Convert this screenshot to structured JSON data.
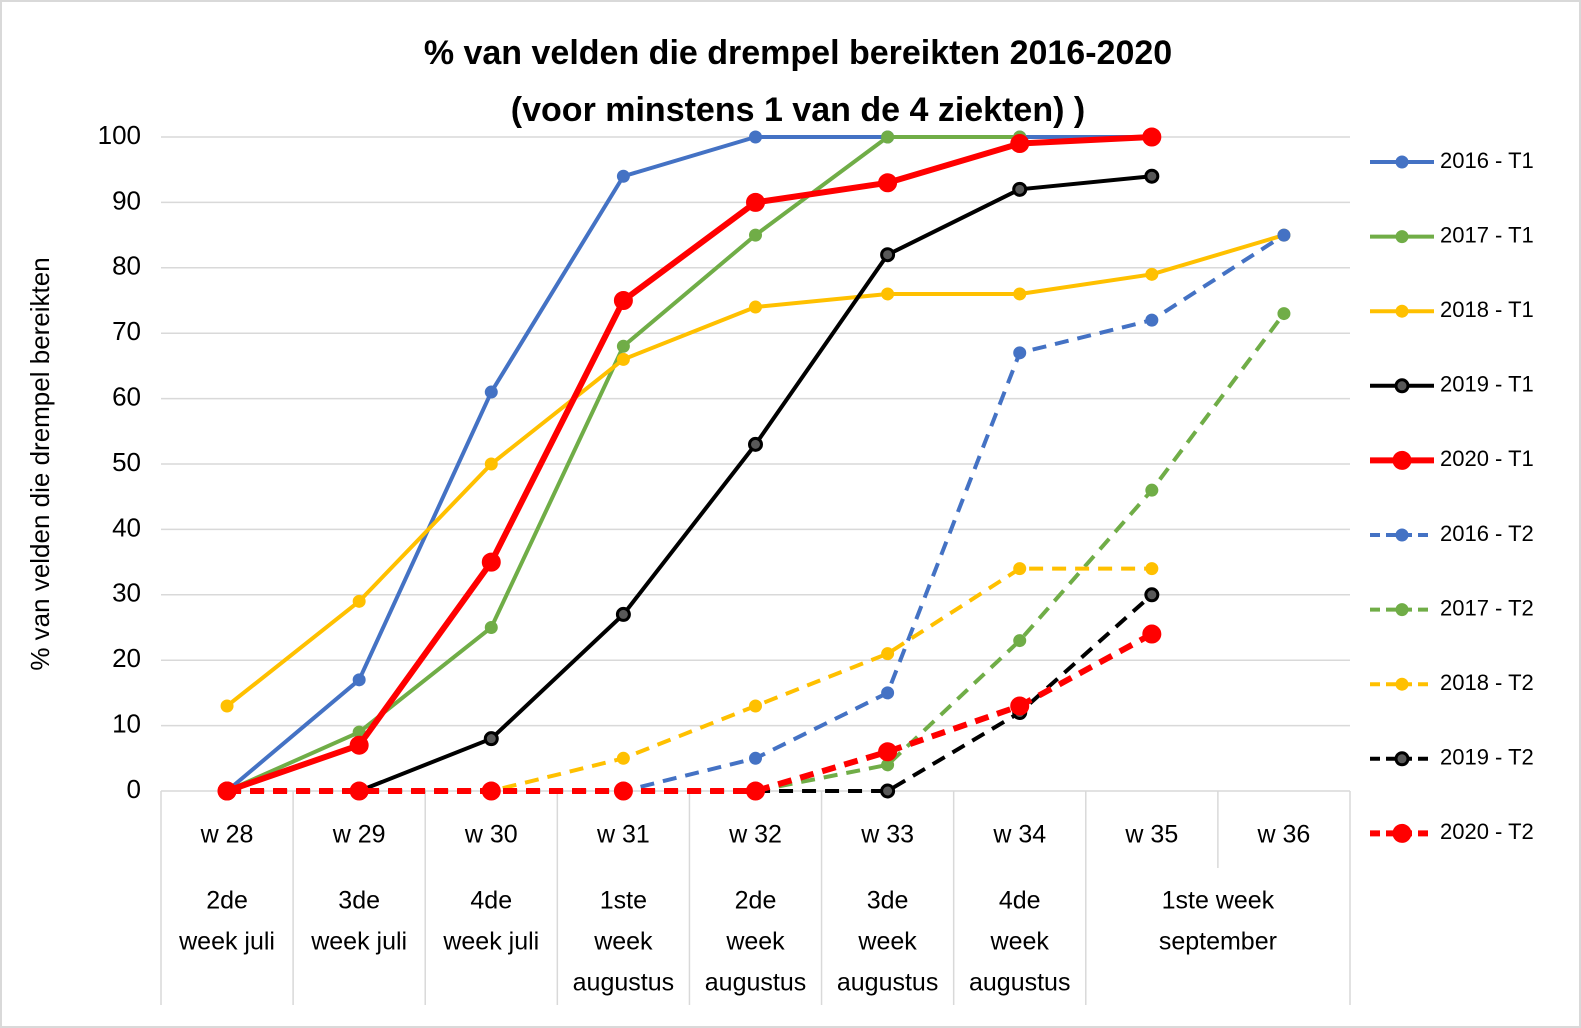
{
  "chart_data": {
    "type": "line",
    "title": [
      "% van velden die drempel bereikten 2016-2020",
      "(voor minstens 1 van de 4 ziekten) )"
    ],
    "y_label": "% van velden die drempel bereikten",
    "categories": [
      "w 28",
      "w 29",
      "w 30",
      "w 31",
      "w 32",
      "w 33",
      "w 34",
      "w 35",
      "w 36"
    ],
    "categories2": [
      [
        "2de",
        "week juli"
      ],
      [
        "3de",
        "week juli"
      ],
      [
        "4de",
        "week juli"
      ],
      [
        "1ste",
        "week",
        "augustus"
      ],
      [
        "2de",
        "week",
        "augustus"
      ],
      [
        "3de",
        "week",
        "augustus"
      ],
      [
        "4de",
        "week",
        "augustus"
      ],
      [
        "1ste week",
        "september"
      ],
      null
    ],
    "ylim": [
      0,
      100
    ],
    "yticks": [
      0,
      10,
      20,
      30,
      40,
      50,
      60,
      70,
      80,
      90,
      100
    ],
    "grid": true,
    "legend": "right",
    "series": [
      {
        "name": "2016 - T1",
        "color": "#4472c4",
        "dashed": false,
        "values": [
          0,
          17,
          61,
          94,
          100,
          100,
          100,
          100,
          null
        ]
      },
      {
        "name": "2017 - T1",
        "color": "#70ad47",
        "dashed": false,
        "values": [
          0,
          9,
          25,
          68,
          85,
          100,
          100,
          null,
          null
        ]
      },
      {
        "name": "2018 - T1",
        "color": "#ffc000",
        "dashed": false,
        "values": [
          13,
          29,
          50,
          66,
          74,
          76,
          76,
          79,
          85
        ]
      },
      {
        "name": "2019 - T1",
        "color": "#000000",
        "dashed": false,
        "values": [
          null,
          0,
          8,
          27,
          53,
          82,
          92,
          94,
          null
        ]
      },
      {
        "name": "2020 - T1",
        "color": "#ff0000",
        "dashed": false,
        "bold": true,
        "values": [
          0,
          7,
          35,
          75,
          90,
          93,
          99,
          100,
          null
        ]
      },
      {
        "name": "2016 - T2",
        "color": "#4472c4",
        "dashed": true,
        "values": [
          0,
          0,
          0,
          0,
          5,
          15,
          67,
          72,
          85
        ]
      },
      {
        "name": "2017 - T2",
        "color": "#70ad47",
        "dashed": true,
        "values": [
          0,
          0,
          0,
          0,
          0,
          4,
          23,
          46,
          73
        ]
      },
      {
        "name": "2018 - T2",
        "color": "#ffc000",
        "dashed": true,
        "values": [
          0,
          0,
          0,
          5,
          13,
          21,
          34,
          34,
          null
        ]
      },
      {
        "name": "2019 - T2",
        "color": "#000000",
        "dashed": true,
        "values": [
          0,
          0,
          0,
          0,
          0,
          0,
          12,
          30,
          null
        ]
      },
      {
        "name": "2020 - T2",
        "color": "#ff0000",
        "dashed": true,
        "bold": true,
        "values": [
          0,
          0,
          0,
          0,
          0,
          6,
          13,
          24,
          null
        ]
      }
    ]
  }
}
